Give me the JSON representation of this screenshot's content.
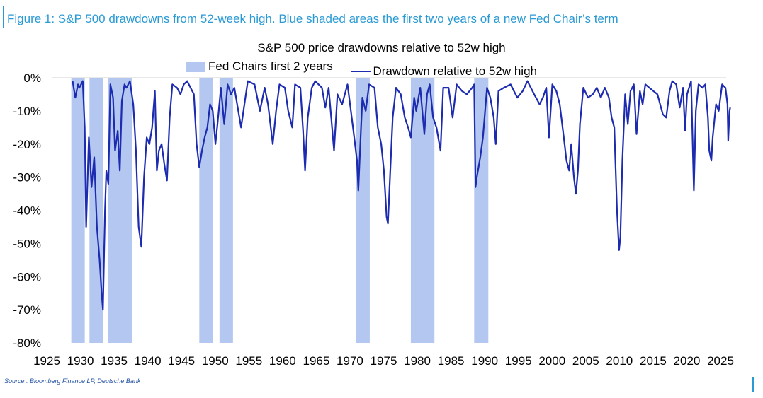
{
  "figure": {
    "title": "Figure 1: S&P 500 drawdowns from 52-week high. Blue shaded areas the first two years of a new Fed Chair’s term",
    "source": "Source : Bloomberg Finance LP, Deutsche Bank",
    "accent_color": "#2a9ad4"
  },
  "chart_data": {
    "type": "line",
    "title": "S&P 500 price drawdowns relative to 52w high",
    "xlabel": "",
    "ylabel": "",
    "xlim": [
      1925,
      2025
    ],
    "ylim": [
      -80,
      0
    ],
    "y_unit": "%",
    "x_ticks": [
      1925,
      1930,
      1935,
      1940,
      1945,
      1950,
      1955,
      1960,
      1965,
      1970,
      1975,
      1980,
      1985,
      1990,
      1995,
      2000,
      2005,
      2010,
      2015,
      2020,
      2025
    ],
    "y_ticks": [
      0,
      -10,
      -20,
      -30,
      -40,
      -50,
      -60,
      -70,
      -80
    ],
    "y_tick_labels": [
      "0%",
      "-10%",
      "-20%",
      "-30%",
      "-40%",
      "-50%",
      "-60%",
      "-70%",
      "-80%"
    ],
    "legend": {
      "placement": "top",
      "items": [
        {
          "label": "Fed Chairs first 2 years",
          "kind": "area",
          "color": "#b4c7f0"
        },
        {
          "label": "Drawdown relative to 52w high",
          "kind": "line",
          "color": "#1c2bb0"
        }
      ]
    },
    "shaded_periods": [
      {
        "start": 1927.8,
        "end": 1929.8
      },
      {
        "start": 1930.5,
        "end": 1932.5
      },
      {
        "start": 1933.2,
        "end": 1936.8
      },
      {
        "start": 1946.8,
        "end": 1948.8
      },
      {
        "start": 1949.8,
        "end": 1951.8
      },
      {
        "start": 1970.1,
        "end": 1972.1
      },
      {
        "start": 1978.2,
        "end": 1981.7
      },
      {
        "start": 1987.6,
        "end": 1989.7
      }
    ],
    "series": [
      {
        "name": "Drawdown relative to 52w high",
        "color": "#1c2bb0",
        "points": [
          [
            1928.0,
            -1
          ],
          [
            1928.4,
            -6
          ],
          [
            1928.8,
            -2
          ],
          [
            1929.0,
            -3
          ],
          [
            1929.5,
            -1
          ],
          [
            1929.8,
            -15
          ],
          [
            1930.0,
            -45
          ],
          [
            1930.4,
            -18
          ],
          [
            1930.8,
            -33
          ],
          [
            1931.2,
            -24
          ],
          [
            1931.6,
            -45
          ],
          [
            1932.0,
            -55
          ],
          [
            1932.3,
            -65
          ],
          [
            1932.5,
            -70
          ],
          [
            1932.8,
            -40
          ],
          [
            1933.0,
            -28
          ],
          [
            1933.3,
            -32
          ],
          [
            1933.6,
            -2
          ],
          [
            1934.0,
            -6
          ],
          [
            1934.3,
            -22
          ],
          [
            1934.7,
            -16
          ],
          [
            1935.0,
            -28
          ],
          [
            1935.3,
            -7
          ],
          [
            1935.7,
            -2
          ],
          [
            1936.0,
            -3
          ],
          [
            1936.5,
            -1
          ],
          [
            1937.0,
            -8
          ],
          [
            1937.4,
            -22
          ],
          [
            1937.8,
            -45
          ],
          [
            1938.2,
            -51
          ],
          [
            1938.6,
            -30
          ],
          [
            1939.0,
            -18
          ],
          [
            1939.4,
            -20
          ],
          [
            1939.8,
            -15
          ],
          [
            1940.2,
            -4
          ],
          [
            1940.5,
            -28
          ],
          [
            1940.8,
            -22
          ],
          [
            1941.2,
            -20
          ],
          [
            1941.6,
            -26
          ],
          [
            1942.0,
            -31
          ],
          [
            1942.4,
            -12
          ],
          [
            1942.8,
            -2
          ],
          [
            1943.5,
            -3
          ],
          [
            1944.0,
            -5
          ],
          [
            1944.5,
            -2
          ],
          [
            1945.0,
            -1
          ],
          [
            1945.5,
            -3
          ],
          [
            1946.0,
            -5
          ],
          [
            1946.4,
            -20
          ],
          [
            1946.8,
            -27
          ],
          [
            1947.2,
            -22
          ],
          [
            1947.6,
            -18
          ],
          [
            1948.0,
            -15
          ],
          [
            1948.4,
            -8
          ],
          [
            1948.8,
            -10
          ],
          [
            1949.2,
            -20
          ],
          [
            1949.5,
            -14
          ],
          [
            1950.0,
            -3
          ],
          [
            1950.5,
            -14
          ],
          [
            1951.0,
            -2
          ],
          [
            1951.5,
            -5
          ],
          [
            1952.0,
            -3
          ],
          [
            1953.0,
            -15
          ],
          [
            1953.5,
            -8
          ],
          [
            1954.0,
            -1
          ],
          [
            1955.0,
            -2
          ],
          [
            1955.8,
            -10
          ],
          [
            1956.5,
            -3
          ],
          [
            1957.0,
            -8
          ],
          [
            1957.7,
            -20
          ],
          [
            1958.2,
            -10
          ],
          [
            1958.7,
            -2
          ],
          [
            1959.5,
            -3
          ],
          [
            1960.0,
            -10
          ],
          [
            1960.6,
            -15
          ],
          [
            1961.0,
            -2
          ],
          [
            1961.8,
            -3
          ],
          [
            1962.2,
            -16
          ],
          [
            1962.5,
            -28
          ],
          [
            1962.9,
            -12
          ],
          [
            1963.5,
            -3
          ],
          [
            1964.0,
            -1
          ],
          [
            1965.0,
            -3
          ],
          [
            1965.5,
            -9
          ],
          [
            1966.0,
            -3
          ],
          [
            1966.8,
            -22
          ],
          [
            1967.3,
            -5
          ],
          [
            1968.0,
            -8
          ],
          [
            1968.8,
            -2
          ],
          [
            1969.3,
            -10
          ],
          [
            1969.8,
            -18
          ],
          [
            1970.2,
            -25
          ],
          [
            1970.4,
            -34
          ],
          [
            1970.7,
            -20
          ],
          [
            1971.0,
            -6
          ],
          [
            1971.5,
            -10
          ],
          [
            1972.0,
            -2
          ],
          [
            1972.8,
            -3
          ],
          [
            1973.3,
            -15
          ],
          [
            1973.8,
            -20
          ],
          [
            1974.2,
            -28
          ],
          [
            1974.6,
            -42
          ],
          [
            1974.8,
            -44
          ],
          [
            1975.1,
            -30
          ],
          [
            1975.5,
            -12
          ],
          [
            1976.0,
            -3
          ],
          [
            1976.7,
            -5
          ],
          [
            1977.3,
            -12
          ],
          [
            1977.8,
            -15
          ],
          [
            1978.2,
            -18
          ],
          [
            1978.7,
            -6
          ],
          [
            1979.0,
            -10
          ],
          [
            1979.6,
            -3
          ],
          [
            1980.2,
            -17
          ],
          [
            1980.6,
            -5
          ],
          [
            1981.0,
            -2
          ],
          [
            1981.5,
            -12
          ],
          [
            1982.0,
            -15
          ],
          [
            1982.6,
            -22
          ],
          [
            1983.0,
            -3
          ],
          [
            1983.8,
            -3
          ],
          [
            1984.4,
            -12
          ],
          [
            1985.0,
            -2
          ],
          [
            1985.8,
            -4
          ],
          [
            1986.5,
            -5
          ],
          [
            1987.3,
            -3
          ],
          [
            1987.6,
            -2
          ],
          [
            1987.8,
            -33
          ],
          [
            1988.0,
            -30
          ],
          [
            1988.5,
            -24
          ],
          [
            1988.9,
            -18
          ],
          [
            1989.5,
            -3
          ],
          [
            1990.0,
            -6
          ],
          [
            1990.5,
            -12
          ],
          [
            1990.8,
            -20
          ],
          [
            1991.2,
            -4
          ],
          [
            1992.0,
            -3
          ],
          [
            1993.0,
            -2
          ],
          [
            1994.0,
            -6
          ],
          [
            1994.8,
            -4
          ],
          [
            1995.5,
            -1
          ],
          [
            1996.5,
            -5
          ],
          [
            1997.3,
            -8
          ],
          [
            1997.8,
            -6
          ],
          [
            1998.3,
            -3
          ],
          [
            1998.7,
            -18
          ],
          [
            1999.2,
            -2
          ],
          [
            1999.8,
            -4
          ],
          [
            2000.3,
            -8
          ],
          [
            2000.9,
            -18
          ],
          [
            2001.3,
            -25
          ],
          [
            2001.7,
            -28
          ],
          [
            2002.0,
            -20
          ],
          [
            2002.4,
            -30
          ],
          [
            2002.7,
            -35
          ],
          [
            2003.0,
            -28
          ],
          [
            2003.3,
            -14
          ],
          [
            2003.8,
            -3
          ],
          [
            2004.5,
            -6
          ],
          [
            2005.2,
            -5
          ],
          [
            2005.8,
            -3
          ],
          [
            2006.4,
            -6
          ],
          [
            2007.0,
            -3
          ],
          [
            2007.6,
            -6
          ],
          [
            2008.0,
            -12
          ],
          [
            2008.4,
            -15
          ],
          [
            2008.8,
            -40
          ],
          [
            2009.1,
            -52
          ],
          [
            2009.3,
            -48
          ],
          [
            2009.6,
            -25
          ],
          [
            2010.0,
            -5
          ],
          [
            2010.4,
            -14
          ],
          [
            2010.8,
            -4
          ],
          [
            2011.3,
            -2
          ],
          [
            2011.7,
            -17
          ],
          [
            2012.2,
            -4
          ],
          [
            2012.6,
            -8
          ],
          [
            2013.0,
            -2
          ],
          [
            2013.6,
            -3
          ],
          [
            2014.2,
            -4
          ],
          [
            2014.8,
            -5
          ],
          [
            2015.6,
            -11
          ],
          [
            2016.1,
            -12
          ],
          [
            2016.6,
            -4
          ],
          [
            2017.0,
            -1
          ],
          [
            2017.6,
            -2
          ],
          [
            2018.1,
            -9
          ],
          [
            2018.6,
            -3
          ],
          [
            2018.9,
            -16
          ],
          [
            2019.2,
            -5
          ],
          [
            2019.8,
            -1
          ],
          [
            2020.2,
            -34
          ],
          [
            2020.5,
            -10
          ],
          [
            2020.9,
            -2
          ],
          [
            2021.5,
            -3
          ],
          [
            2021.9,
            -2
          ],
          [
            2022.3,
            -12
          ],
          [
            2022.5,
            -22
          ],
          [
            2022.8,
            -25
          ],
          [
            2023.0,
            -18
          ],
          [
            2023.5,
            -8
          ],
          [
            2023.9,
            -10
          ],
          [
            2024.4,
            -2
          ],
          [
            2024.9,
            -3
          ],
          [
            2025.2,
            -8
          ],
          [
            2025.3,
            -19
          ],
          [
            2025.5,
            -10
          ],
          [
            2025.6,
            -9
          ]
        ]
      }
    ]
  }
}
